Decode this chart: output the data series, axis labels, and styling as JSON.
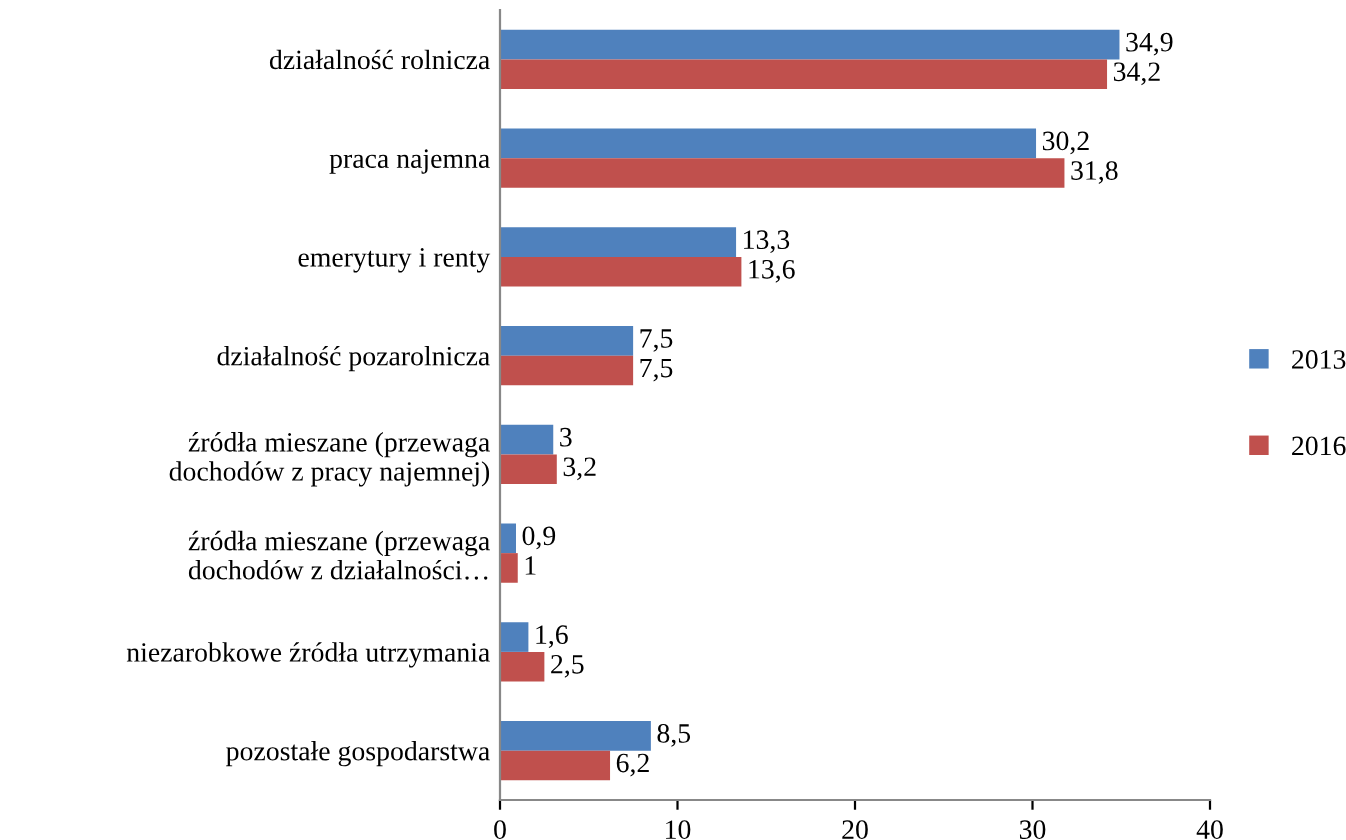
{
  "chart_data": {
    "type": "bar",
    "orientation": "horizontal",
    "categories": [
      "działalność rolnicza",
      "praca najemna",
      "emerytury i renty",
      "działalność pozarolnicza",
      "źródła mieszane (przewaga\ndochodów z pracy najemnej)",
      "źródła mieszane (przewaga\ndochodów z działalności…",
      "niezarobkowe źródła utrzymania",
      "pozostałe gospodarstwa"
    ],
    "series": [
      {
        "name": "2013",
        "color": "#4f81bd",
        "values": [
          34.9,
          30.2,
          13.3,
          7.5,
          3,
          0.9,
          1.6,
          8.5
        ],
        "value_labels": [
          "34,9",
          "30,2",
          "13,3",
          "7,5",
          "3",
          "0,9",
          "1,6",
          "8,5"
        ]
      },
      {
        "name": "2016",
        "color": "#c0504d",
        "values": [
          34.2,
          31.8,
          13.6,
          7.5,
          3.2,
          1,
          2.5,
          6.2
        ],
        "value_labels": [
          "34,2",
          "31,8",
          "13,6",
          "7,5",
          "3,2",
          "1",
          "2,5",
          "6,2"
        ]
      }
    ],
    "xlim": [
      0,
      40
    ],
    "xticks": [
      0,
      10,
      20,
      30,
      40
    ],
    "grid": false,
    "legend": "right"
  }
}
